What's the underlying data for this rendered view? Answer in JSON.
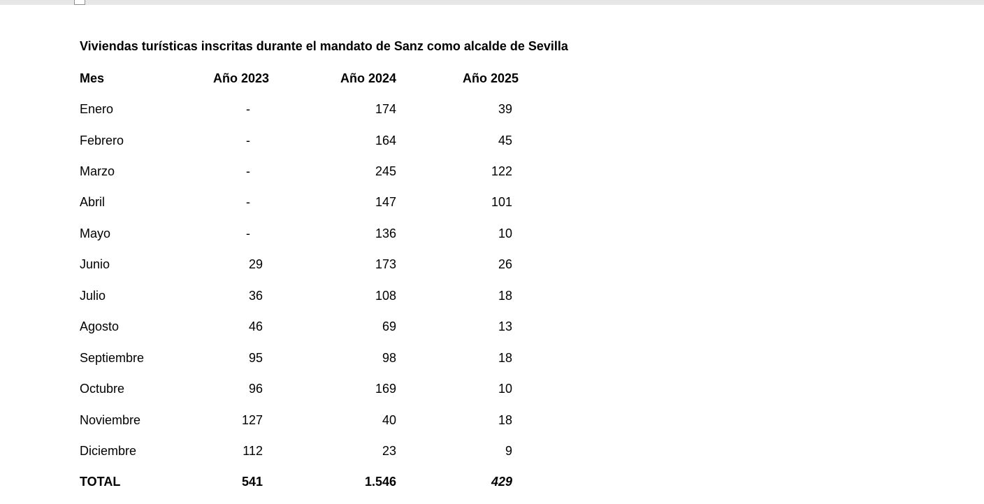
{
  "colors": {
    "top_bar": "#e7e7e7",
    "page_background": "#ffffff",
    "text": "#000000"
  },
  "document": {
    "title": "Viviendas turísticas inscritas durante el mandato de Sanz como alcalde de Sevilla",
    "table": {
      "columns": [
        "Mes",
        "Año 2023",
        "Año 2024",
        "Año 2025"
      ],
      "rows": [
        [
          "Enero",
          "-",
          "174",
          "39"
        ],
        [
          "Febrero",
          "-",
          "164",
          "45"
        ],
        [
          "Marzo",
          "-",
          "245",
          "122"
        ],
        [
          "Abril",
          "-",
          "147",
          "101"
        ],
        [
          "Mayo",
          "-",
          "136",
          "10"
        ],
        [
          "Junio",
          "29",
          "173",
          "26"
        ],
        [
          "Julio",
          "36",
          "108",
          "18"
        ],
        [
          "Agosto",
          "46",
          "69",
          "13"
        ],
        [
          "Septiembre",
          "95",
          "98",
          "18"
        ],
        [
          "Octubre",
          "96",
          "169",
          "10"
        ],
        [
          "Noviembre",
          "127",
          "40",
          "18"
        ],
        [
          "Diciembre",
          "112",
          "23",
          "9"
        ]
      ],
      "total": [
        "TOTAL",
        "541",
        "1.546",
        "429"
      ]
    }
  }
}
